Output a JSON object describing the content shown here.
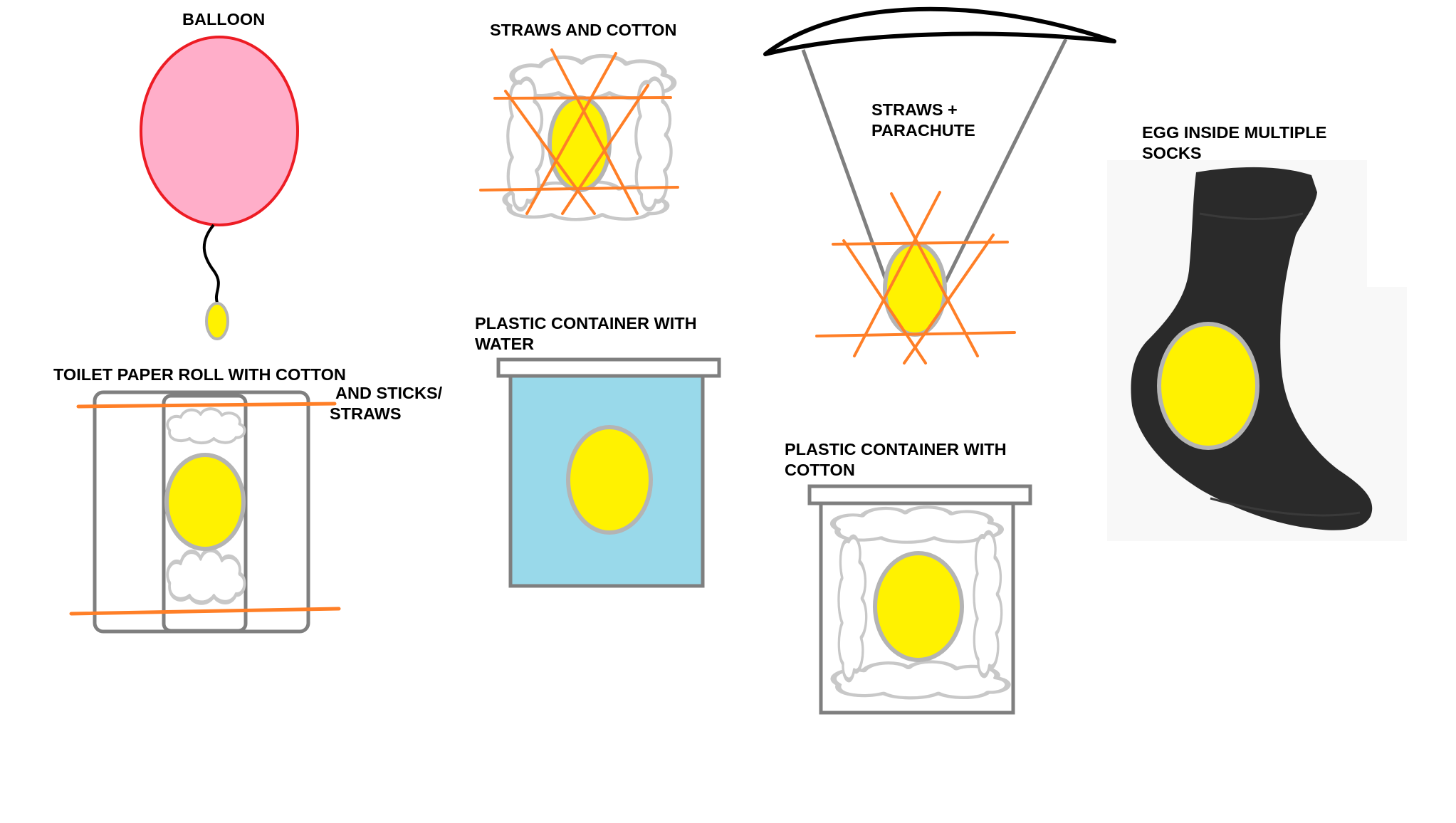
{
  "labels": {
    "balloon": "BALLOON",
    "straws_and_cotton": "STRAWS AND COTTON",
    "straws_parachute_line1": "STRAWS +",
    "straws_parachute_line2": "PARACHUTE",
    "egg_socks_line1": "EGG INSIDE MULTIPLE",
    "egg_socks_line2": "SOCKS",
    "toilet_roll": "TOILET PAPER ROLL WITH COTTON",
    "toilet_roll_cont_line1": "AND STICKS/",
    "toilet_roll_cont_line2": "STRAWS",
    "container_water_line1": "PLASTIC CONTAINER WITH",
    "container_water_line2": "WATER",
    "container_cotton_line1": "PLASTIC CONTAINER WITH",
    "container_cotton_line2": "COTTON"
  },
  "colors": {
    "egg": "#fff200",
    "egg_outline": "#b4b4b4",
    "straw": "#ff7f27",
    "balloon": "#ffaec9",
    "balloon_outline": "#ed1c24",
    "water": "#99d9ea",
    "cotton": "#c8c8c8",
    "container": "#7f7f7f",
    "sock": "#2a2a2a"
  }
}
